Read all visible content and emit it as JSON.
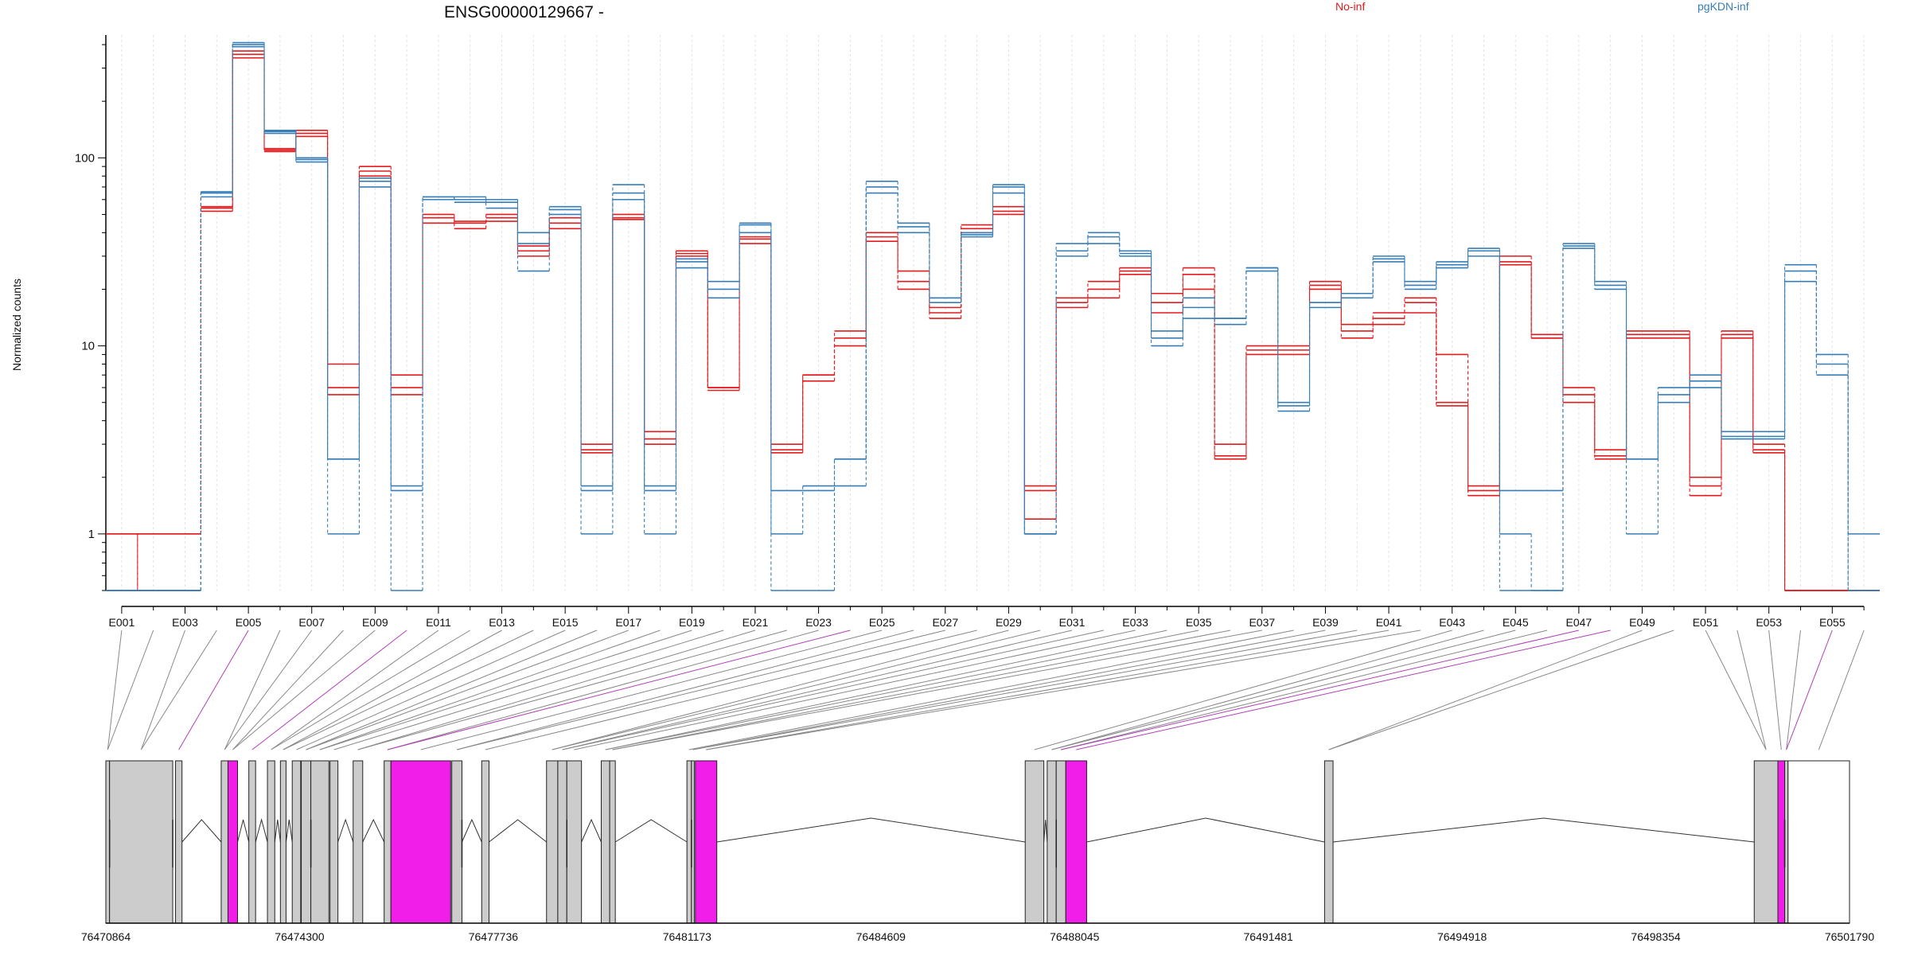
{
  "chart_data": {
    "type": "line",
    "title": "ENSG00000129667 -",
    "ylabel": "Normalized counts",
    "yscale": "log",
    "ylim": [
      0.5,
      450
    ],
    "yticks": [
      "1",
      "10",
      "100"
    ],
    "ytick_values": [
      1,
      10,
      100
    ],
    "exon_labels": [
      "E001",
      "E003",
      "E005",
      "E007",
      "E009",
      "E011",
      "E013",
      "E015",
      "E017",
      "E019",
      "E021",
      "E023",
      "E025",
      "E027",
      "E029",
      "E031",
      "E033",
      "E035",
      "E037",
      "E039",
      "E041",
      "E043",
      "E045",
      "E047",
      "E049",
      "E051",
      "E053",
      "E055"
    ],
    "legend": [
      {
        "name": "No-inf",
        "color": "#e41a1c"
      },
      {
        "name": "pgKDN-inf",
        "color": "#377eb8"
      }
    ],
    "bins": 56,
    "series": [
      {
        "group": "No-inf",
        "values": [
          1,
          0.5,
          0.5,
          55,
          370,
          110,
          140,
          8,
          90,
          7,
          50,
          45,
          50,
          32,
          48,
          3,
          50,
          3.5,
          32,
          6,
          38,
          3,
          7,
          12,
          40,
          25,
          16,
          42,
          55,
          1.2,
          18,
          22,
          26,
          19,
          26,
          3,
          10,
          10,
          22,
          12,
          14,
          18,
          9,
          1.8,
          30,
          11,
          6,
          2.5,
          12,
          12,
          2,
          12,
          3,
          0.5,
          0.5,
          0.5
        ]
      },
      {
        "group": "No-inf",
        "values": [
          0.5,
          1,
          1,
          52,
          340,
          108,
          135,
          6,
          80,
          6,
          45,
          42,
          48,
          30,
          45,
          2.8,
          47,
          3,
          30,
          5.8,
          35,
          2.8,
          6.5,
          10,
          36,
          20,
          14,
          40,
          50,
          1.8,
          16,
          18,
          24,
          15,
          20,
          2.5,
          9,
          9,
          20,
          11,
          13,
          15,
          4.8,
          1.6,
          27,
          11,
          5,
          2.8,
          11,
          11,
          1.6,
          11,
          2.7,
          0.5,
          0.5,
          0.5
        ]
      },
      {
        "group": "No-inf",
        "values": [
          1,
          1,
          1,
          54,
          355,
          112,
          130,
          5.5,
          85,
          5.5,
          48,
          46,
          46,
          34,
          42,
          2.7,
          48,
          3.2,
          31,
          6,
          37,
          2.7,
          7,
          11,
          38,
          22,
          15,
          44,
          52,
          1.7,
          17,
          20,
          25,
          17,
          24,
          2.6,
          9.5,
          9.5,
          21,
          13,
          15,
          17,
          5,
          1.7,
          28,
          11.5,
          5.5,
          2.6,
          11.5,
          11.5,
          1.8,
          11.5,
          2.8,
          0.5,
          0.5,
          0.5
        ]
      },
      {
        "group": "pgKDN-inf",
        "values": [
          0.5,
          0.5,
          0.5,
          62,
          400,
          135,
          100,
          2.5,
          75,
          1.8,
          62,
          58,
          54,
          40,
          55,
          1.8,
          72,
          1,
          28,
          22,
          44,
          1,
          1.8,
          2.5,
          65,
          45,
          18,
          40,
          72,
          1,
          35,
          40,
          32,
          12,
          18,
          14,
          26,
          5,
          17,
          19,
          30,
          22,
          28,
          30,
          0.5,
          0.5,
          33,
          22,
          1,
          6,
          7,
          3.5,
          3.5,
          27,
          9,
          0.5
        ]
      },
      {
        "group": "pgKDN-inf",
        "values": [
          0.5,
          0.5,
          0.5,
          65,
          390,
          140,
          95,
          1,
          70,
          0.5,
          60,
          62,
          60,
          25,
          50,
          1,
          60,
          1.8,
          26,
          18,
          40,
          0.5,
          0.5,
          1.8,
          75,
          40,
          17,
          38,
          65,
          1,
          30,
          35,
          30,
          10,
          14,
          13,
          25,
          4.5,
          16,
          18,
          28,
          20,
          26,
          33,
          1,
          0.5,
          35,
          20,
          2.5,
          5,
          6,
          3.2,
          3.2,
          25,
          8,
          0.5
        ]
      },
      {
        "group": "pgKDN-inf",
        "values": [
          0.5,
          0.5,
          0.5,
          66,
          410,
          138,
          98,
          2.5,
          78,
          1.7,
          62,
          60,
          58,
          35,
          53,
          1.7,
          65,
          1.7,
          29,
          20,
          45,
          1.7,
          1.7,
          2.5,
          70,
          43,
          18,
          39,
          70,
          1,
          32,
          38,
          31,
          11,
          16,
          14,
          26,
          4.8,
          17,
          19,
          29,
          21,
          27,
          32,
          1.7,
          1.7,
          34,
          21,
          2.5,
          5.5,
          6.5,
          3.3,
          3.3,
          22,
          7,
          1
        ]
      }
    ],
    "genomic_axis_ticks": [
      "76470864",
      "76474300",
      "76477736",
      "76481173",
      "76484609",
      "76488045",
      "76491481",
      "76494918",
      "76498354",
      "76501790"
    ],
    "genomic_range": [
      76470864,
      76501790
    ],
    "exon_blocks": [
      {
        "start": 76470864,
        "end": 76470930,
        "highlight": false
      },
      {
        "start": 76470930,
        "end": 76472050,
        "highlight": false
      },
      {
        "start": 76472100,
        "end": 76472215,
        "highlight": false
      },
      {
        "start": 76472910,
        "end": 76473030,
        "highlight": false
      },
      {
        "start": 76473030,
        "end": 76473200,
        "highlight": true
      },
      {
        "start": 76473400,
        "end": 76473520,
        "highlight": false
      },
      {
        "start": 76473730,
        "end": 76473860,
        "highlight": false
      },
      {
        "start": 76473960,
        "end": 76474060,
        "highlight": false
      },
      {
        "start": 76474170,
        "end": 76474320,
        "highlight": false
      },
      {
        "start": 76474330,
        "end": 76474500,
        "highlight": false
      },
      {
        "start": 76474500,
        "end": 76474820,
        "highlight": false
      },
      {
        "start": 76474840,
        "end": 76474980,
        "highlight": false
      },
      {
        "start": 76475250,
        "end": 76475420,
        "highlight": false
      },
      {
        "start": 76475800,
        "end": 76475920,
        "highlight": false
      },
      {
        "start": 76475920,
        "end": 76476980,
        "highlight": true
      },
      {
        "start": 76477000,
        "end": 76477180,
        "highlight": false
      },
      {
        "start": 76477530,
        "end": 76477660,
        "highlight": false
      },
      {
        "start": 76478680,
        "end": 76478880,
        "highlight": false
      },
      {
        "start": 76478880,
        "end": 76479040,
        "highlight": false
      },
      {
        "start": 76479040,
        "end": 76479300,
        "highlight": false
      },
      {
        "start": 76479650,
        "end": 76479800,
        "highlight": false
      },
      {
        "start": 76479800,
        "end": 76479900,
        "highlight": false
      },
      {
        "start": 76481170,
        "end": 76481250,
        "highlight": false
      },
      {
        "start": 76481250,
        "end": 76481300,
        "highlight": false
      },
      {
        "start": 76481320,
        "end": 76481700,
        "highlight": true
      },
      {
        "start": 76487170,
        "end": 76487500,
        "highlight": false
      },
      {
        "start": 76487560,
        "end": 76487720,
        "highlight": false
      },
      {
        "start": 76487720,
        "end": 76487890,
        "highlight": false
      },
      {
        "start": 76487890,
        "end": 76488260,
        "highlight": true
      },
      {
        "start": 76492480,
        "end": 76492630,
        "highlight": false
      },
      {
        "start": 76500100,
        "end": 76500520,
        "highlight": false
      },
      {
        "start": 76500520,
        "end": 76500640,
        "highlight": true
      },
      {
        "start": 76500640,
        "end": 76500700,
        "highlight": false
      },
      {
        "start": 76500700,
        "end": 76501790,
        "highlight": "outline"
      }
    ]
  }
}
